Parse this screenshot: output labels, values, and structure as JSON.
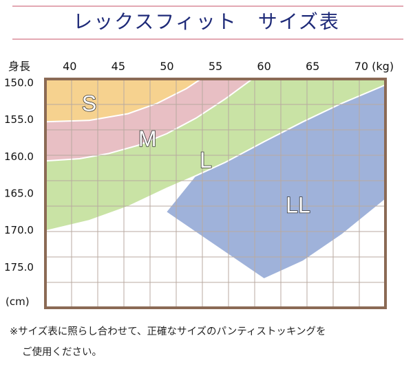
{
  "title": "レックスフィット　サイズ表",
  "note_line1": "※サイズ表に照らし合わせて、正確なサイズのパンティストッキングを",
  "note_line2": "ご使用ください。",
  "colors": {
    "S": "#f6d28f",
    "M": "#e8bfc4",
    "L": "#c9e3a5",
    "LL": "#9fb2da",
    "frame": "#8b6a55",
    "grid": "#b8aaa0",
    "boundary": "#ffffff"
  },
  "chart_data": {
    "type": "area",
    "title": "レックスフィット　サイズ表",
    "xlabel": "",
    "ylabel": "",
    "x_axis_label": "身長",
    "y_unit_label": "(cm)",
    "x_tick_labels": [
      "40",
      "45",
      "50",
      "55",
      "60",
      "65",
      "70 (kg)"
    ],
    "x_ticks": [
      40,
      45,
      50,
      55,
      60,
      65,
      70
    ],
    "y_tick_labels": [
      "150.0",
      "155.0",
      "160.0",
      "165.0",
      "170.0",
      "175.0"
    ],
    "y_ticks": [
      150,
      155,
      160,
      165,
      170,
      175
    ],
    "xlim": [
      37.5,
      72.5
    ],
    "ylim": [
      149.5,
      180.5
    ],
    "grid": true,
    "regions": [
      {
        "name": "S",
        "points": [
          [
            37.5,
            149.5
          ],
          [
            53.5,
            149.5
          ],
          [
            52,
            150.8
          ],
          [
            49,
            152.8
          ],
          [
            46,
            154.2
          ],
          [
            42,
            155.1
          ],
          [
            37.5,
            155.3
          ]
        ]
      },
      {
        "name": "M",
        "points": [
          [
            53.5,
            149.5
          ],
          [
            58.8,
            149.5
          ],
          [
            56,
            152.2
          ],
          [
            53,
            154.8
          ],
          [
            50,
            156.9
          ],
          [
            47,
            158.5
          ],
          [
            44,
            159.6
          ],
          [
            41,
            160.3
          ],
          [
            37.5,
            160.6
          ],
          [
            37.5,
            155.3
          ],
          [
            42,
            155.1
          ],
          [
            46,
            154.2
          ],
          [
            49,
            152.8
          ],
          [
            52,
            150.8
          ]
        ]
      },
      {
        "name": "L",
        "points": [
          [
            58.8,
            149.5
          ],
          [
            72.5,
            149.5
          ],
          [
            72.5,
            150.3
          ],
          [
            68,
            152.8
          ],
          [
            64,
            155.3
          ],
          [
            60,
            158
          ],
          [
            56,
            160.8
          ],
          [
            53,
            162.6
          ],
          [
            50,
            164.3
          ],
          [
            46,
            166.8
          ],
          [
            42,
            168.7
          ],
          [
            37.5,
            170.1
          ],
          [
            37.5,
            160.6
          ],
          [
            41,
            160.3
          ],
          [
            44,
            159.6
          ],
          [
            47,
            158.5
          ],
          [
            50,
            156.9
          ],
          [
            53,
            154.8
          ],
          [
            56,
            152.2
          ]
        ]
      },
      {
        "name": "LL",
        "points": [
          [
            72.5,
            150.3
          ],
          [
            72.5,
            165.7
          ],
          [
            68,
            170.5
          ],
          [
            64,
            174.1
          ],
          [
            60,
            176.5
          ],
          [
            50,
            167.5
          ],
          [
            53,
            162.6
          ],
          [
            56,
            160.8
          ],
          [
            60,
            158
          ],
          [
            64,
            155.3
          ],
          [
            68,
            152.8
          ]
        ]
      }
    ],
    "region_labels": [
      {
        "text": "S",
        "x": 42,
        "y": 152.7
      },
      {
        "text": "M",
        "x": 48,
        "y": 157.5
      },
      {
        "text": "L",
        "x": 54,
        "y": 160.4
      },
      {
        "text": "LL",
        "x": 63.5,
        "y": 166.5
      }
    ],
    "boundaries": [
      [
        [
          37.5,
          155.3
        ],
        [
          42,
          155.1
        ],
        [
          46,
          154.2
        ],
        [
          49,
          152.8
        ],
        [
          52,
          150.8
        ],
        [
          53.5,
          149.5
        ]
      ],
      [
        [
          37.5,
          160.6
        ],
        [
          41,
          160.3
        ],
        [
          44,
          159.6
        ],
        [
          47,
          158.5
        ],
        [
          50,
          156.9
        ],
        [
          53,
          154.8
        ],
        [
          56,
          152.2
        ],
        [
          58.8,
          149.5
        ]
      ],
      [
        [
          37.5,
          170.1
        ],
        [
          42,
          168.7
        ],
        [
          46,
          166.8
        ],
        [
          50,
          164.3
        ],
        [
          53,
          162.6
        ],
        [
          56,
          160.8
        ],
        [
          60,
          158
        ],
        [
          64,
          155.3
        ],
        [
          68,
          152.8
        ],
        [
          72.5,
          150.3
        ]
      ]
    ]
  }
}
